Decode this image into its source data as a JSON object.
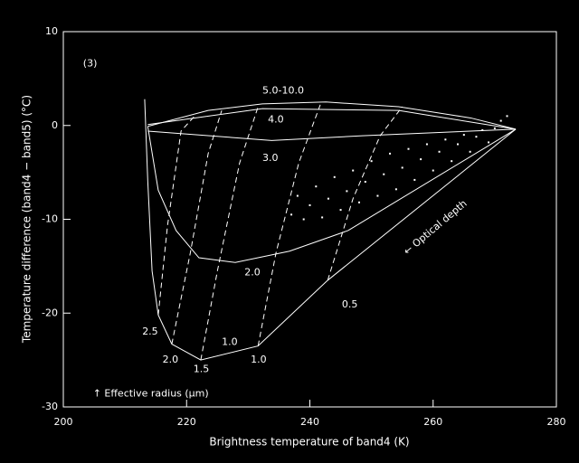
{
  "chart_data": {
    "type": "line",
    "xlabel": "Brightness temperature of band4 (K)",
    "ylabel": "Temperature difference (band4 − band5) (°C)",
    "xlim": [
      200,
      280
    ],
    "ylim": [
      -30,
      10
    ],
    "xticks": [
      200,
      220,
      240,
      260,
      280
    ],
    "yticks": [
      -30,
      -20,
      -10,
      0,
      10
    ],
    "color": "#ffffff",
    "series": [
      {
        "style": "solid",
        "x": [
          213.2,
          213.7,
          214.4,
          215.4,
          217.6,
          222.3,
          231.6,
          242.9,
          273.4
        ],
        "values": [
          2.8,
          -5.9,
          -15.5,
          -20.2,
          -23.3,
          -25.0,
          -23.5,
          -16.5,
          -0.4
        ]
      },
      {
        "style": "solid",
        "x": [
          213.7,
          215.4,
          218.3,
          222.0,
          227.9,
          236.7,
          246.2,
          273.4
        ],
        "values": [
          -0.1,
          -6.9,
          -11.2,
          -14.1,
          -14.6,
          -13.4,
          -11.2,
          -0.4
        ]
      },
      {
        "style": "solid",
        "x": [
          213.7,
          233.8,
          248.5,
          273.4
        ],
        "values": [
          -0.6,
          -1.6,
          -1.1,
          -0.4
        ]
      },
      {
        "style": "solid",
        "x": [
          213.7,
          223.5,
          232.3,
          242.6,
          254.4,
          266.1,
          273.4
        ],
        "values": [
          -0.1,
          1.6,
          2.3,
          2.5,
          2.0,
          0.8,
          -0.4
        ]
      },
      {
        "style": "solid",
        "x": [
          213.7,
          232.3,
          254.4,
          273.4
        ],
        "values": [
          0.1,
          1.8,
          1.6,
          -0.4
        ]
      },
      {
        "style": "dashed",
        "x": [
          215.4,
          216.9,
          219.1,
          221.3
        ],
        "values": [
          -20.2,
          -10.7,
          -0.6,
          1.0
        ]
      },
      {
        "style": "dashed",
        "x": [
          217.6,
          220.6,
          223.5,
          225.7
        ],
        "values": [
          -23.3,
          -13.6,
          -3.0,
          1.6
        ]
      },
      {
        "style": "dashed",
        "x": [
          222.3,
          225.0,
          228.6,
          231.6
        ],
        "values": [
          -25.0,
          -15.5,
          -4.0,
          2.0
        ]
      },
      {
        "style": "dashed",
        "x": [
          231.6,
          234.5,
          238.2,
          241.8
        ],
        "values": [
          -23.5,
          -13.6,
          -4.0,
          2.4
        ]
      },
      {
        "style": "dashed",
        "x": [
          242.9,
          247.0,
          251.4,
          255.0
        ],
        "values": [
          -16.5,
          -7.8,
          -1.1,
          2.0
        ]
      },
      {
        "style": "points",
        "x": [
          237,
          238,
          239,
          240,
          241,
          242,
          243,
          244,
          245,
          246,
          247,
          248,
          249,
          250,
          251,
          252,
          253,
          254,
          255,
          256,
          257,
          258,
          259,
          260,
          261,
          262,
          263,
          264,
          265,
          266,
          267,
          268,
          269,
          270,
          271,
          272
        ],
        "values": [
          -9.5,
          -7.5,
          -10,
          -8.5,
          -6.5,
          -9.8,
          -7.8,
          -5.5,
          -9,
          -7,
          -4.8,
          -8.2,
          -6,
          -3.8,
          -7.5,
          -5.2,
          -3,
          -6.8,
          -4.5,
          -2.5,
          -5.8,
          -3.6,
          -2,
          -4.8,
          -2.8,
          -1.5,
          -3.8,
          -2,
          -1,
          -2.8,
          -1.2,
          -0.5,
          -1.8,
          -0.3,
          0.5,
          1
        ]
      }
    ],
    "annotations": [
      {
        "text": "(3)",
        "x": 203.2,
        "y": 6.6
      },
      {
        "text": "5.0-10.0",
        "x": 232.3,
        "y": 3.7
      },
      {
        "text": "4.0",
        "x": 233.2,
        "y": 0.6
      },
      {
        "text": "3.0",
        "x": 232.3,
        "y": -3.5
      },
      {
        "text": "2.0",
        "x": 229.4,
        "y": -15.7
      },
      {
        "text": "2.5",
        "x": 212.8,
        "y": -22.0
      },
      {
        "text": "2.0",
        "x": 216.1,
        "y": -25.0
      },
      {
        "text": "1.5",
        "x": 221.1,
        "y": -26.0
      },
      {
        "text": "1.0",
        "x": 225.7,
        "y": -23.1
      },
      {
        "text": "1.0",
        "x": 230.4,
        "y": -25.0
      },
      {
        "text": "0.5",
        "x": 245.2,
        "y": -19.1
      },
      {
        "text": "← Optical depth",
        "x": 255.5,
        "y": -13.6,
        "angle": -40
      },
      {
        "text": "↑ Effective radius (µm)",
        "x": 204.8,
        "y": -28.6
      }
    ]
  }
}
